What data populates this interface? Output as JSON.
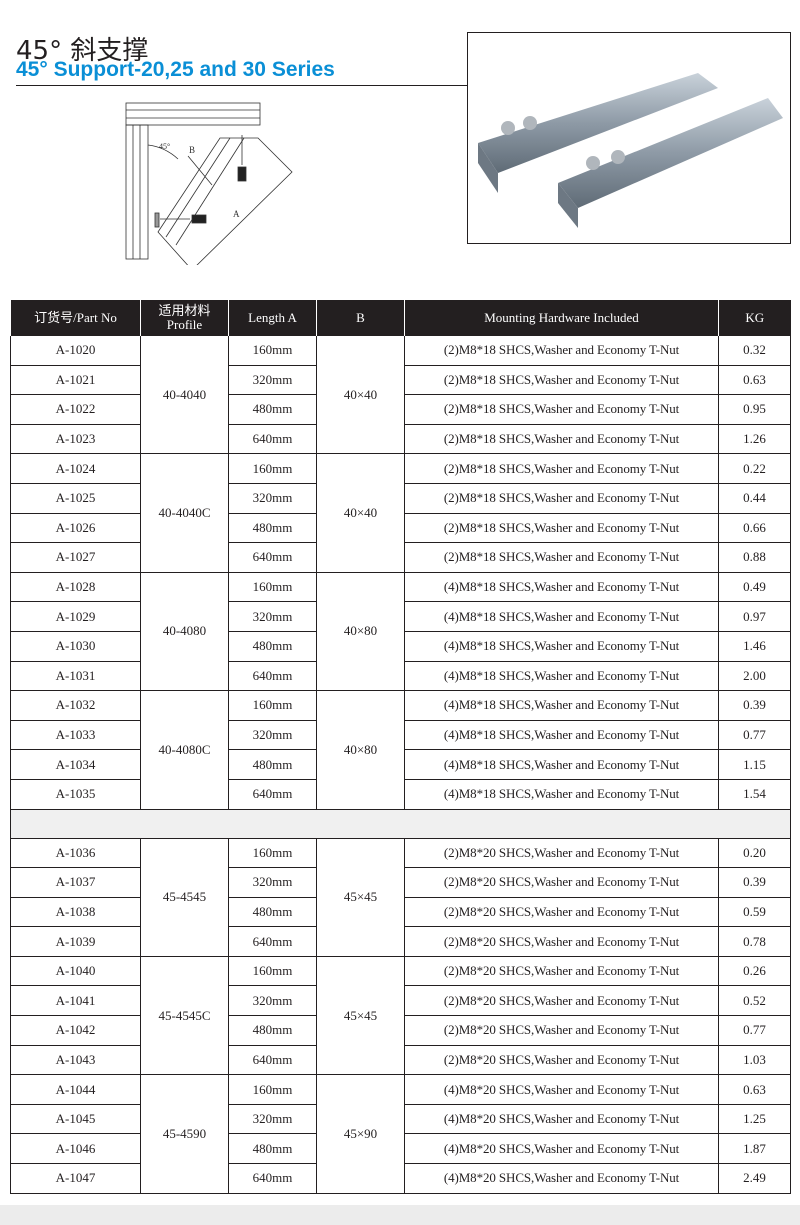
{
  "header": {
    "title_cn": "45°  斜支撑",
    "title_en": "45°  Support-20,25 and 30 Series"
  },
  "diagram": {
    "label_b": "B",
    "label_a": "A",
    "angle": "45°"
  },
  "table": {
    "headers": [
      "订货号/Part No",
      "适用材料\nProfile",
      "Length A",
      "B",
      "Mounting Hardware Included",
      "KG"
    ],
    "groups": [
      {
        "profile": "40-4040",
        "b": "40×40",
        "rows": [
          [
            "A-1020",
            "160mm",
            "(2)M8*18 SHCS,Washer and Economy T-Nut",
            "0.32"
          ],
          [
            "A-1021",
            "320mm",
            "(2)M8*18 SHCS,Washer and Economy T-Nut",
            "0.63"
          ],
          [
            "A-1022",
            "480mm",
            "(2)M8*18 SHCS,Washer and Economy T-Nut",
            "0.95"
          ],
          [
            "A-1023",
            "640mm",
            "(2)M8*18 SHCS,Washer and Economy T-Nut",
            "1.26"
          ]
        ]
      },
      {
        "profile": "40-4040C",
        "b": "40×40",
        "rows": [
          [
            "A-1024",
            "160mm",
            "(2)M8*18 SHCS,Washer and Economy T-Nut",
            "0.22"
          ],
          [
            "A-1025",
            "320mm",
            "(2)M8*18 SHCS,Washer and Economy T-Nut",
            "0.44"
          ],
          [
            "A-1026",
            "480mm",
            "(2)M8*18 SHCS,Washer and Economy T-Nut",
            "0.66"
          ],
          [
            "A-1027",
            "640mm",
            "(2)M8*18 SHCS,Washer and Economy T-Nut",
            "0.88"
          ]
        ]
      },
      {
        "profile": "40-4080",
        "b": "40×80",
        "rows": [
          [
            "A-1028",
            "160mm",
            "(4)M8*18 SHCS,Washer and Economy T-Nut",
            "0.49"
          ],
          [
            "A-1029",
            "320mm",
            "(4)M8*18 SHCS,Washer and Economy T-Nut",
            "0.97"
          ],
          [
            "A-1030",
            "480mm",
            "(4)M8*18 SHCS,Washer and Economy T-Nut",
            "1.46"
          ],
          [
            "A-1031",
            "640mm",
            "(4)M8*18 SHCS,Washer and Economy T-Nut",
            "2.00"
          ]
        ]
      },
      {
        "profile": "40-4080C",
        "b": "40×80",
        "rows": [
          [
            "A-1032",
            "160mm",
            "(4)M8*18 SHCS,Washer and Economy T-Nut",
            "0.39"
          ],
          [
            "A-1033",
            "320mm",
            "(4)M8*18 SHCS,Washer and Economy T-Nut",
            "0.77"
          ],
          [
            "A-1034",
            "480mm",
            "(4)M8*18 SHCS,Washer and Economy T-Nut",
            "1.15"
          ],
          [
            "A-1035",
            "640mm",
            "(4)M8*18 SHCS,Washer and Economy T-Nut",
            "1.54"
          ]
        ]
      },
      {
        "spacer": true
      },
      {
        "profile": "45-4545",
        "b": "45×45",
        "rows": [
          [
            "A-1036",
            "160mm",
            "(2)M8*20 SHCS,Washer and Economy T-Nut",
            "0.20"
          ],
          [
            "A-1037",
            "320mm",
            "(2)M8*20 SHCS,Washer and Economy T-Nut",
            "0.39"
          ],
          [
            "A-1038",
            "480mm",
            "(2)M8*20 SHCS,Washer and Economy T-Nut",
            "0.59"
          ],
          [
            "A-1039",
            "640mm",
            "(2)M8*20 SHCS,Washer and Economy T-Nut",
            "0.78"
          ]
        ]
      },
      {
        "profile": "45-4545C",
        "b": "45×45",
        "rows": [
          [
            "A-1040",
            "160mm",
            "(2)M8*20 SHCS,Washer and Economy T-Nut",
            "0.26"
          ],
          [
            "A-1041",
            "320mm",
            "(2)M8*20 SHCS,Washer and Economy T-Nut",
            "0.52"
          ],
          [
            "A-1042",
            "480mm",
            "(2)M8*20 SHCS,Washer and Economy T-Nut",
            "0.77"
          ],
          [
            "A-1043",
            "640mm",
            "(2)M8*20 SHCS,Washer and Economy T-Nut",
            "1.03"
          ]
        ]
      },
      {
        "profile": "45-4590",
        "b": "45×90",
        "rows": [
          [
            "A-1044",
            "160mm",
            "(4)M8*20 SHCS,Washer and Economy T-Nut",
            "0.63"
          ],
          [
            "A-1045",
            "320mm",
            "(4)M8*20 SHCS,Washer and Economy T-Nut",
            "1.25"
          ],
          [
            "A-1046",
            "480mm",
            "(4)M8*20 SHCS,Washer and Economy T-Nut",
            "1.87"
          ],
          [
            "A-1047",
            "640mm",
            "(4)M8*20 SHCS,Washer and Economy T-Nut",
            "2.49"
          ]
        ]
      }
    ]
  },
  "colors": {
    "accent": "#0a8fd6",
    "header_bg": "#231f20"
  }
}
